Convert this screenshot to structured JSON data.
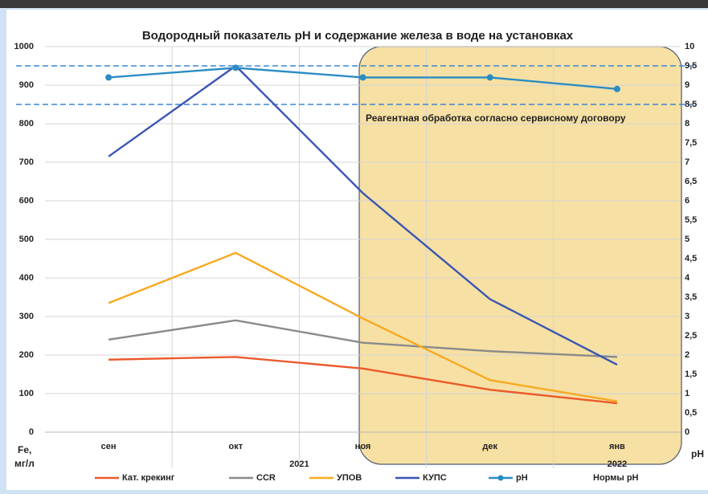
{
  "chart_data": {
    "type": "line",
    "title": "Водородный показатель pH и содержание железа в воде на установках",
    "categories": [
      "сен",
      "окт",
      "ноя",
      "дек",
      "янв"
    ],
    "x_groups": [
      {
        "label": "2021",
        "span": 4
      },
      {
        "label": "2022",
        "span": 1
      }
    ],
    "series": [
      {
        "name": "Кат. крекинг",
        "color": "#ec5a2c",
        "values": [
          188,
          195,
          165,
          110,
          75
        ]
      },
      {
        "name": "CCR",
        "color": "#8a8a8a",
        "values": [
          240,
          290,
          232,
          210,
          195
        ]
      },
      {
        "name": "УПОВ",
        "color": "#f7a91f",
        "values": [
          335,
          465,
          295,
          135,
          80
        ]
      },
      {
        "name": "КУПС",
        "color": "#3b55b3",
        "values": [
          715,
          950,
          620,
          345,
          175
        ]
      },
      {
        "name": "pH",
        "color": "#2b8cc4",
        "axis": "y2",
        "marker": true,
        "values": [
          9.2,
          9.45,
          9.2,
          9.2,
          8.9
        ]
      }
    ],
    "norms": {
      "name": "Нормы pH",
      "color": "#3a86d6",
      "axis": "y2",
      "values": [
        9.5,
        8.5
      ]
    },
    "annotation": "Реагентная обработка согласно сервисному договору",
    "ylabel": [
      "Fe,",
      "мг/л"
    ],
    "y2label": "pH",
    "ylim": [
      0,
      1000
    ],
    "yticks": [
      0,
      100,
      200,
      300,
      400,
      500,
      600,
      700,
      800,
      900,
      1000
    ],
    "y2lim": [
      0,
      10
    ],
    "y2ticks": [
      0,
      {
        "value": 0.5,
        "label": "0,5"
      },
      1,
      {
        "value": 1.5,
        "label": "1,5"
      },
      2,
      {
        "value": 2.5,
        "label": "2,5"
      },
      3,
      {
        "value": 3.5,
        "label": "3,5"
      },
      4,
      {
        "value": 4.5,
        "label": "4,5"
      },
      5,
      {
        "value": 5.5,
        "label": "5,5"
      },
      6,
      {
        "value": 6.5,
        "label": "6,5"
      },
      7,
      {
        "value": 7.5,
        "label": "7,5"
      },
      8,
      {
        "value": 8.5,
        "label": "8,5"
      },
      9,
      {
        "value": 9.5,
        "label": "9,5"
      },
      10
    ],
    "grid": true
  }
}
